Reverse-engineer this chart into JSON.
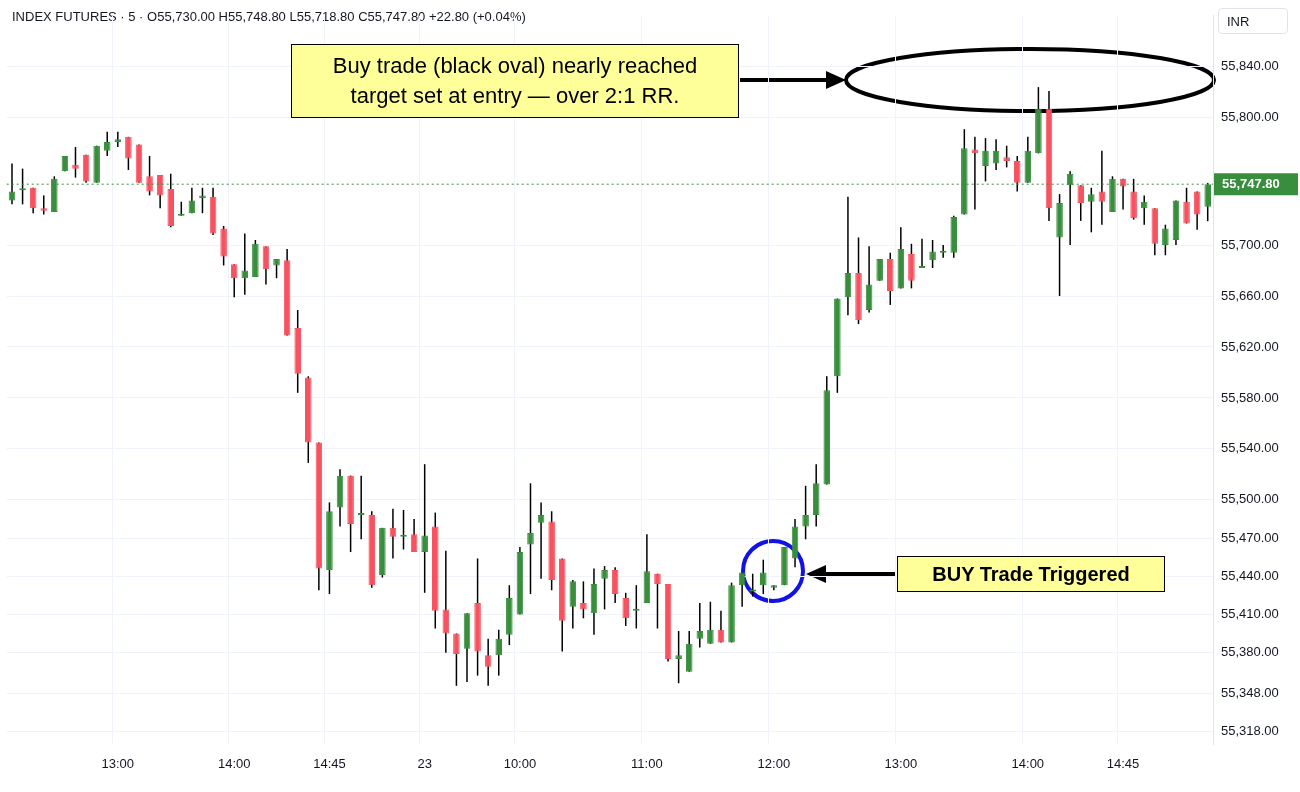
{
  "chart_data": {
    "type": "candlestick",
    "title": "INDEX FUTURES · 5 · O55,730.00 H55,748.80 L55,718.80 C55,747.80 +22.80 (+0.04%)",
    "ylabel": "INR",
    "categories": [
      null,
      null,
      null,
      null,
      null,
      null,
      null,
      null,
      null,
      null,
      "13:00",
      null,
      null,
      null,
      null,
      null,
      null,
      null,
      null,
      null,
      null,
      "14:00",
      null,
      null,
      null,
      null,
      null,
      null,
      null,
      null,
      "14:45",
      null,
      null,
      null,
      null,
      null,
      null,
      null,
      null,
      "23",
      null,
      null,
      null,
      null,
      null,
      null,
      null,
      null,
      "10:00",
      null,
      null,
      null,
      null,
      null,
      null,
      null,
      null,
      null,
      null,
      null,
      "11:00",
      null,
      null,
      null,
      null,
      null,
      null,
      null,
      null,
      null,
      null,
      null,
      "12:00",
      null,
      null,
      null,
      null,
      null,
      null,
      null,
      null,
      null,
      null,
      null,
      "13:00",
      null,
      null,
      null,
      null,
      null,
      null,
      null,
      null,
      null,
      null,
      null,
      "14:00",
      null,
      null,
      null,
      null,
      null,
      null,
      null,
      null,
      "14:45",
      null,
      null,
      null,
      null,
      null,
      null,
      null,
      null
    ],
    "ohlc": [
      [
        55735,
        55764,
        55732,
        55742
      ],
      [
        55743,
        55760,
        55732,
        55743
      ],
      [
        55745,
        55745,
        55725,
        55729
      ],
      [
        55729,
        55739,
        55724,
        55727
      ],
      [
        55726,
        55754,
        55726,
        55752
      ],
      [
        55758,
        55770,
        55758,
        55770
      ],
      [
        55763,
        55777,
        55753,
        55760
      ],
      [
        55771,
        55771,
        55749,
        55750
      ],
      [
        55749,
        55778,
        55749,
        55778
      ],
      [
        55774,
        55789,
        55770,
        55781
      ],
      [
        55781,
        55789,
        55777,
        55783
      ],
      [
        55785,
        55785,
        55759,
        55768
      ],
      [
        55779,
        55779,
        55749,
        55749
      ],
      [
        55754,
        55770,
        55739,
        55742
      ],
      [
        55755,
        55755,
        55729,
        55739
      ],
      [
        55744,
        55756,
        55714,
        55715
      ],
      [
        55723,
        55734,
        55723,
        55723
      ],
      [
        55725,
        55745,
        55725,
        55735
      ],
      [
        55737,
        55745,
        55725,
        55739
      ],
      [
        55738,
        55745,
        55708,
        55709
      ],
      [
        55713,
        55715,
        55684,
        55691
      ],
      [
        55685,
        55685,
        55659,
        55674
      ],
      [
        55674,
        55709,
        55661,
        55680
      ],
      [
        55675,
        55704,
        55675,
        55701
      ],
      [
        55699,
        55699,
        55669,
        55681
      ],
      [
        55684,
        55689,
        55674,
        55689
      ],
      [
        55688,
        55697,
        55629,
        55629
      ],
      [
        55635,
        55649,
        55584,
        55599
      ],
      [
        55596,
        55597,
        55529,
        55545
      ],
      [
        55545,
        55545,
        55429,
        55446
      ],
      [
        55445,
        55498,
        55426,
        55491
      ],
      [
        55494,
        55524,
        55479,
        55519
      ],
      [
        55519,
        55519,
        55459,
        55481
      ],
      [
        55488,
        55519,
        55469,
        55488
      ],
      [
        55488,
        55491,
        55431,
        55433
      ],
      [
        55441,
        55478,
        55439,
        55478
      ],
      [
        55478,
        55493,
        55454,
        55471
      ],
      [
        55471,
        55492,
        55461,
        55471
      ],
      [
        55473,
        55485,
        55459,
        55459
      ],
      [
        55459,
        55528,
        55427,
        55472
      ],
      [
        55479,
        55490,
        55399,
        55413
      ],
      [
        55414,
        55460,
        55380,
        55395
      ],
      [
        55395,
        55395,
        55354,
        55379
      ],
      [
        55383,
        55411,
        55357,
        55411
      ],
      [
        55419,
        55454,
        55362,
        55381
      ],
      [
        55378,
        55391,
        55354,
        55369
      ],
      [
        55378,
        55398,
        55362,
        55391
      ],
      [
        55394,
        55433,
        55386,
        55423
      ],
      [
        55410,
        55463,
        55410,
        55459
      ],
      [
        55465,
        55513,
        55426,
        55474
      ],
      [
        55482,
        55498,
        55438,
        55488
      ],
      [
        55483,
        55491,
        55429,
        55437
      ],
      [
        55454,
        55454,
        55381,
        55405
      ],
      [
        55416,
        55437,
        55399,
        55436
      ],
      [
        55419,
        55436,
        55407,
        55414
      ],
      [
        55411,
        55446,
        55394,
        55434
      ],
      [
        55438,
        55448,
        55414,
        55445
      ],
      [
        55445,
        55447,
        55419,
        55426
      ],
      [
        55423,
        55427,
        55401,
        55407
      ],
      [
        55413,
        55433,
        55399,
        55413
      ],
      [
        55419,
        55473,
        55419,
        55444
      ],
      [
        55442,
        55442,
        55399,
        55434
      ],
      [
        55434,
        55434,
        55373,
        55375
      ],
      [
        55375,
        55397,
        55356,
        55378
      ],
      [
        55365,
        55397,
        55365,
        55387
      ],
      [
        55391,
        55419,
        55384,
        55397
      ],
      [
        55387,
        55420,
        55387,
        55398
      ],
      [
        55398,
        55413,
        55388,
        55388
      ],
      [
        55388,
        55435,
        55388,
        55433
      ],
      [
        55433,
        55443,
        55416,
        55443
      ],
      [
        55428,
        55442,
        55424,
        55428
      ],
      [
        55433,
        55453,
        55426,
        55443
      ],
      [
        55431,
        55433,
        55429,
        55433
      ],
      [
        55433,
        55463,
        55433,
        55463
      ],
      [
        55454,
        55485,
        55447,
        55479
      ],
      [
        55479,
        55511,
        55469,
        55488
      ],
      [
        55488,
        55528,
        55479,
        55513
      ],
      [
        55512,
        55597,
        55512,
        55586
      ],
      [
        55597,
        55658,
        55584,
        55658
      ],
      [
        55659,
        55738,
        55645,
        55678
      ],
      [
        55678,
        55706,
        55638,
        55641
      ],
      [
        55649,
        55699,
        55647,
        55669
      ],
      [
        55672,
        55689,
        55672,
        55689
      ],
      [
        55689,
        55694,
        55653,
        55664
      ],
      [
        55666,
        55714,
        55666,
        55697
      ],
      [
        55693,
        55701,
        55666,
        55672
      ],
      [
        55682,
        55705,
        55682,
        55682
      ],
      [
        55688,
        55704,
        55682,
        55695
      ],
      [
        55694,
        55700,
        55690,
        55694
      ],
      [
        55694,
        55723,
        55690,
        55722
      ],
      [
        55724,
        55791,
        55724,
        55776
      ],
      [
        55775,
        55785,
        55728,
        55772
      ],
      [
        55762,
        55784,
        55750,
        55774
      ],
      [
        55764,
        55783,
        55759,
        55774
      ],
      [
        55769,
        55778,
        55761,
        55766
      ],
      [
        55766,
        55770,
        55742,
        55749
      ],
      [
        55749,
        55785,
        55749,
        55774
      ],
      [
        55772,
        55824,
        55772,
        55807
      ],
      [
        55807,
        55821,
        55719,
        55729
      ],
      [
        55706,
        55740,
        55660,
        55733
      ],
      [
        55747,
        55758,
        55700,
        55756
      ],
      [
        55747,
        55747,
        55719,
        55733
      ],
      [
        55734,
        55745,
        55710,
        55740
      ],
      [
        55742,
        55774,
        55716,
        55734
      ],
      [
        55726,
        55754,
        55726,
        55752
      ],
      [
        55752,
        55752,
        55728,
        55746
      ],
      [
        55742,
        55752,
        55720,
        55721
      ],
      [
        55729,
        55739,
        55716,
        55734
      ],
      [
        55729,
        55729,
        55692,
        55701
      ],
      [
        55700,
        55716,
        55692,
        55713
      ],
      [
        55704,
        55735,
        55700,
        55735
      ],
      [
        55734,
        55745,
        55717,
        55717
      ],
      [
        55742,
        55742,
        55712,
        55724
      ],
      [
        55730,
        55748.8,
        55718.8,
        55747.8
      ]
    ],
    "colors": [
      "#388e3c",
      "#388e3c",
      "#f7525f",
      "#f7525f",
      "#388e3c",
      "#388e3c",
      "#f7525f",
      "#f7525f",
      "#388e3c",
      "#388e3c",
      "#388e3c",
      "#f7525f",
      "#f7525f",
      "#f7525f",
      "#f7525f",
      "#f7525f",
      "#388e3c",
      "#388e3c",
      "#388e3c",
      "#f7525f",
      "#f7525f",
      "#f7525f",
      "#388e3c",
      "#388e3c",
      "#f7525f",
      "#388e3c",
      "#f7525f",
      "#f7525f",
      "#f7525f",
      "#f7525f",
      "#388e3c",
      "#388e3c",
      "#f7525f",
      "#388e3c",
      "#f7525f",
      "#388e3c",
      "#f7525f",
      "#388e3c",
      "#f7525f",
      "#388e3c",
      "#f7525f",
      "#f7525f",
      "#f7525f",
      "#388e3c",
      "#f7525f",
      "#f7525f",
      "#388e3c",
      "#388e3c",
      "#388e3c",
      "#388e3c",
      "#388e3c",
      "#f7525f",
      "#f7525f",
      "#388e3c",
      "#f7525f",
      "#388e3c",
      "#388e3c",
      "#f7525f",
      "#f7525f",
      "#388e3c",
      "#388e3c",
      "#f7525f",
      "#f7525f",
      "#388e3c",
      "#388e3c",
      "#388e3c",
      "#388e3c",
      "#f7525f",
      "#388e3c",
      "#388e3c",
      "#388e3c",
      "#388e3c",
      "#388e3c",
      "#388e3c",
      "#388e3c",
      "#388e3c",
      "#388e3c",
      "#388e3c",
      "#388e3c",
      "#388e3c",
      "#f7525f",
      "#388e3c",
      "#388e3c",
      "#f7525f",
      "#388e3c",
      "#f7525f",
      "#388e3c",
      "#388e3c",
      "#388e3c",
      "#388e3c",
      "#388e3c",
      "#f7525f",
      "#388e3c",
      "#388e3c",
      "#f7525f",
      "#f7525f",
      "#388e3c",
      "#388e3c",
      "#f7525f",
      "#388e3c",
      "#388e3c",
      "#f7525f",
      "#388e3c",
      "#f7525f",
      "#388e3c",
      "#f7525f",
      "#f7525f",
      "#388e3c",
      "#f7525f",
      "#388e3c",
      "#388e3c",
      "#f7525f",
      "#f7525f",
      "#388e3c"
    ],
    "ylim": [
      55308,
      55880
    ],
    "yticks": [
      {
        "value": 55318,
        "label": "55,318.00"
      },
      {
        "value": 55348,
        "label": "55,348.00"
      },
      {
        "value": 55380,
        "label": "55,380.00"
      },
      {
        "value": 55410,
        "label": "55,410.00"
      },
      {
        "value": 55440,
        "label": "55,440.00"
      },
      {
        "value": 55470,
        "label": "55,470.00"
      },
      {
        "value": 55500,
        "label": "55,500.00"
      },
      {
        "value": 55540,
        "label": "55,540.00"
      },
      {
        "value": 55580,
        "label": "55,580.00"
      },
      {
        "value": 55620,
        "label": "55,620.00"
      },
      {
        "value": 55660,
        "label": "55,660.00"
      },
      {
        "value": 55700,
        "label": "55,700.00"
      },
      {
        "value": 55800,
        "label": "55,800.00"
      },
      {
        "value": 55840,
        "label": "55,840.00"
      }
    ],
    "ref_lines": [
      {
        "axis": "y",
        "value": 55747.8,
        "label": "55,747.80",
        "color": "#388e3c",
        "line_style": "dotted"
      }
    ],
    "annotations": [
      "Buy trade (black oval) nearly reached target set at entry — over 2:1 RR.",
      "BUY Trade Triggered"
    ],
    "grid": true,
    "legend": false
  }
}
